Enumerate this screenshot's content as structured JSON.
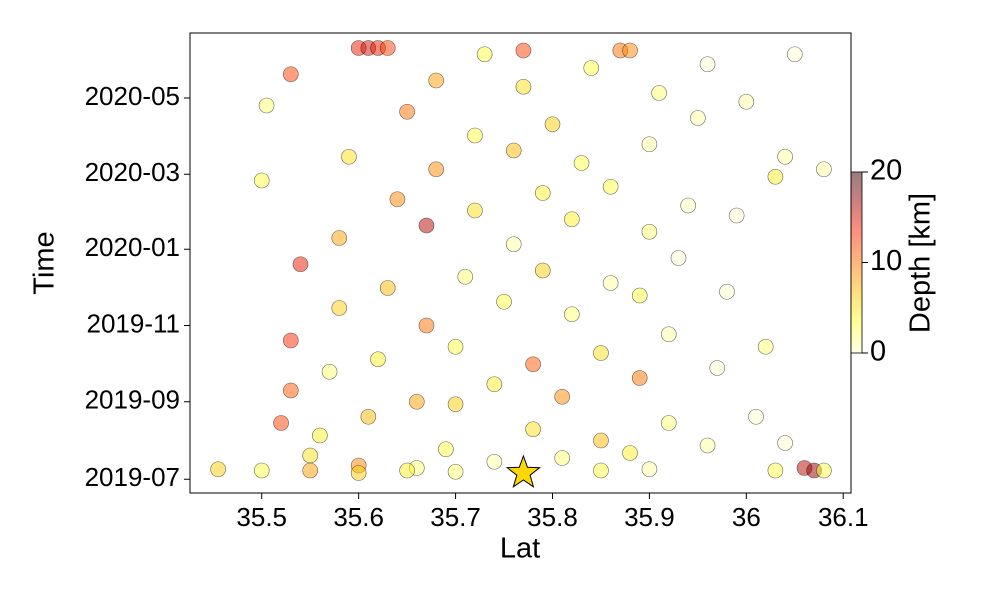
{
  "chart_data": {
    "type": "scatter",
    "xlabel": "Lat",
    "ylabel": "Time",
    "colorbar_label": "Depth [km]",
    "xlim": [
      35.426,
      36.108
    ],
    "xticks": [
      35.5,
      35.6,
      35.7,
      35.8,
      35.9,
      36.0,
      36.1
    ],
    "ylim": [
      "2019-06-20",
      "2020-06-22"
    ],
    "yticks": [
      {
        "value": "2019-07-01",
        "label": "2019-07"
      },
      {
        "value": "2019-09-01",
        "label": "2019-09"
      },
      {
        "value": "2019-11-01",
        "label": "2019-11"
      },
      {
        "value": "2020-01-01",
        "label": "2020-01"
      },
      {
        "value": "2020-03-01",
        "label": "2020-03"
      },
      {
        "value": "2020-05-01",
        "label": "2020-05"
      }
    ],
    "clim": [
      0,
      20
    ],
    "cticks": [
      0,
      10,
      20
    ],
    "colormap": [
      "#ffffd0",
      "#ffff30",
      "#ffc000",
      "#ff7000",
      "#ff2000",
      "#a00000",
      "#300000"
    ],
    "alpha": 0.5,
    "star": {
      "x": 35.77,
      "y": "2019-07-06",
      "color": "#ffd700"
    },
    "x": [
      35.455,
      35.5,
      35.52,
      35.53,
      35.53,
      35.54,
      35.5,
      35.505,
      35.53,
      35.55,
      35.56,
      35.57,
      35.58,
      35.58,
      35.59,
      35.6,
      35.61,
      35.62,
      35.63,
      35.6,
      35.61,
      35.62,
      35.63,
      35.64,
      35.65,
      35.66,
      35.66,
      35.67,
      35.67,
      35.68,
      35.68,
      35.69,
      35.7,
      35.7,
      35.71,
      35.72,
      35.72,
      35.73,
      35.74,
      35.74,
      35.75,
      35.76,
      35.76,
      35.77,
      35.77,
      35.78,
      35.78,
      35.79,
      35.79,
      35.8,
      35.81,
      35.81,
      35.82,
      35.82,
      35.83,
      35.84,
      35.85,
      35.85,
      35.86,
      35.86,
      35.87,
      35.88,
      35.88,
      35.89,
      35.89,
      35.9,
      35.9,
      35.91,
      35.92,
      35.92,
      35.93,
      35.94,
      35.95,
      35.96,
      35.96,
      35.97,
      35.98,
      35.99,
      36.0,
      36.01,
      36.02,
      36.03,
      36.04,
      36.05,
      36.03,
      36.06,
      36.07,
      36.08,
      36.08,
      36.04,
      35.6,
      35.65,
      35.7,
      35.85,
      35.9,
      35.55
    ],
    "y": [
      "2019-07-09",
      "2019-07-08",
      "2019-08-15",
      "2019-09-10",
      "2019-10-20",
      "2019-12-20",
      "2020-02-25",
      "2020-04-25",
      "2020-05-20",
      "2019-07-20",
      "2019-08-05",
      "2019-09-25",
      "2019-11-15",
      "2020-01-10",
      "2020-03-15",
      "2020-06-10",
      "2020-06-10",
      "2020-06-10",
      "2020-06-10",
      "2019-07-12",
      "2019-08-20",
      "2019-10-05",
      "2019-12-01",
      "2020-02-10",
      "2020-04-20",
      "2019-07-10",
      "2019-09-01",
      "2019-11-01",
      "2020-01-20",
      "2020-03-05",
      "2020-05-15",
      "2019-07-25",
      "2019-08-30",
      "2019-10-15",
      "2019-12-10",
      "2020-02-01",
      "2020-04-01",
      "2020-06-05",
      "2019-07-15",
      "2019-09-15",
      "2019-11-20",
      "2020-01-05",
      "2020-03-20",
      "2020-05-10",
      "2020-06-08",
      "2019-08-10",
      "2019-10-01",
      "2019-12-15",
      "2020-02-15",
      "2020-04-10",
      "2019-07-18",
      "2019-09-05",
      "2019-11-10",
      "2020-01-25",
      "2020-03-10",
      "2020-05-25",
      "2019-08-01",
      "2019-10-10",
      "2019-12-05",
      "2020-02-20",
      "2020-06-08",
      "2020-06-08",
      "2019-07-22",
      "2019-09-20",
      "2019-11-25",
      "2020-01-15",
      "2020-03-25",
      "2020-05-05",
      "2019-08-15",
      "2019-10-25",
      "2019-12-25",
      "2020-02-05",
      "2020-04-15",
      "2020-05-28",
      "2019-07-28",
      "2019-09-28",
      "2019-11-28",
      "2020-01-28",
      "2020-04-28",
      "2019-08-20",
      "2019-10-15",
      "2020-02-28",
      "2020-03-15",
      "2020-06-05",
      "2019-07-08",
      "2019-07-10",
      "2019-07-08",
      "2019-07-08",
      "2020-03-05",
      "2019-07-30",
      "2019-07-06",
      "2019-07-08",
      "2019-07-07",
      "2019-07-08",
      "2019-07-09",
      "2019-07-08"
    ],
    "depth": [
      6,
      3,
      12,
      11,
      13,
      14,
      3,
      2,
      12,
      5,
      4,
      2,
      6,
      8,
      5,
      14,
      15,
      14,
      12,
      9,
      7,
      4,
      7,
      9,
      10,
      2,
      8,
      10,
      16,
      9,
      8,
      3,
      6,
      3,
      2,
      5,
      3,
      3,
      1,
      4,
      3,
      1,
      7,
      5,
      12,
      5,
      11,
      6,
      4,
      6,
      2,
      9,
      2,
      4,
      3,
      3,
      7,
      5,
      1,
      3,
      10,
      9,
      4,
      10,
      3,
      2,
      1,
      2,
      2,
      1,
      0,
      0.5,
      1,
      0,
      1,
      0,
      0,
      0,
      1,
      0,
      2,
      4,
      1,
      0,
      3,
      16,
      17,
      3,
      1,
      0,
      6,
      4,
      2,
      3,
      1,
      8
    ]
  }
}
